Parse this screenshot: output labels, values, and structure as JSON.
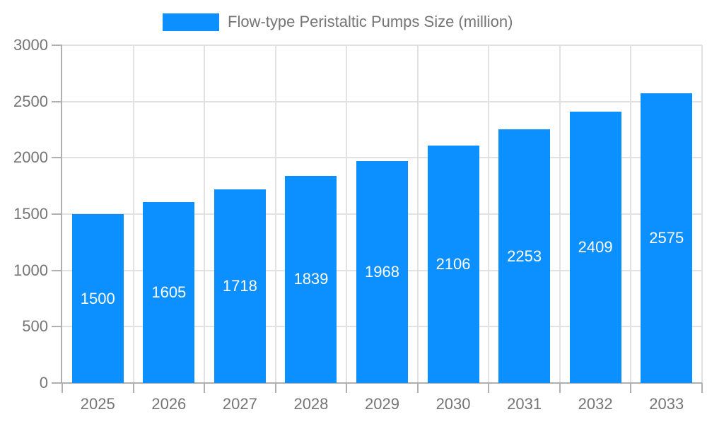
{
  "chart_data": {
    "type": "bar",
    "title": "Flow-type Peristaltic Pumps Size (million)",
    "legend_position": "top",
    "categories": [
      "2025",
      "2026",
      "2027",
      "2028",
      "2029",
      "2030",
      "2031",
      "2032",
      "2033"
    ],
    "series": [
      {
        "name": "Flow-type Peristaltic Pumps Size (million)",
        "values": [
          1500,
          1605,
          1718,
          1839,
          1968,
          2106,
          2253,
          2409,
          2575
        ]
      }
    ],
    "xlabel": "",
    "ylabel": "",
    "ylim": [
      0,
      3000
    ],
    "y_ticks": [
      0,
      500,
      1000,
      1500,
      2000,
      2500,
      3000
    ],
    "grid": true,
    "bar_labels_shown": true,
    "colors": {
      "bar": "#0d90ff",
      "bar_value_label": "#ffffff",
      "axis_text": "#757575",
      "axis_line": "#b0b0b0",
      "gridline": "#e2e2e2"
    }
  }
}
